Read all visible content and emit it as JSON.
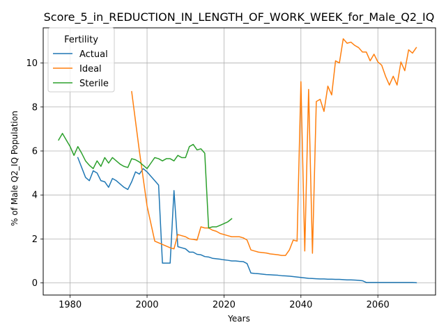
{
  "chart_data": {
    "type": "line",
    "title": "Score_5_in_REDUCTION_IN_LENGTH_OF_WORK_WEEK_for_Male_Q2_IQ",
    "xlabel": "Years",
    "ylabel": "% of Male Q2_IQ Population",
    "xlim": [
      1973,
      2075
    ],
    "ylim": [
      -0.55,
      11.6
    ],
    "xticks": [
      1980,
      2000,
      2020,
      2040,
      2060
    ],
    "yticks": [
      0,
      2,
      4,
      6,
      8,
      10
    ],
    "grid": true,
    "legend": {
      "title": "Fertility",
      "placement": "top-left"
    },
    "series": [
      {
        "name": "Actual",
        "color": "#1f77b4",
        "x": [
          1982,
          1983,
          1984,
          1985,
          1986,
          1987,
          1988,
          1989,
          1990,
          1991,
          1992,
          1993,
          1994,
          1995,
          1996,
          1997,
          1998,
          1999,
          2000,
          2001,
          2002,
          2003,
          2004,
          2005,
          2006,
          2007,
          2008,
          2009,
          2010,
          2011,
          2012,
          2013,
          2014,
          2015,
          2016,
          2017,
          2018,
          2019,
          2020,
          2021,
          2022,
          2023,
          2024,
          2025,
          2026,
          2027,
          2028,
          2029,
          2030,
          2031,
          2032,
          2033,
          2034,
          2035,
          2036,
          2037,
          2038,
          2039,
          2040,
          2041,
          2042,
          2043,
          2044,
          2045,
          2046,
          2047,
          2048,
          2049,
          2050,
          2051,
          2052,
          2053,
          2054,
          2055,
          2056,
          2057,
          2058,
          2059,
          2060,
          2061,
          2062,
          2063,
          2064,
          2065,
          2066,
          2067,
          2068,
          2069,
          2070
        ],
        "y": [
          5.7,
          5.25,
          4.8,
          4.65,
          5.1,
          5.0,
          4.65,
          4.6,
          4.35,
          4.75,
          4.65,
          4.5,
          4.35,
          4.25,
          4.6,
          5.05,
          4.95,
          5.2,
          5.05,
          4.85,
          4.65,
          4.45,
          0.9,
          0.9,
          0.9,
          4.2,
          1.65,
          1.6,
          1.55,
          1.4,
          1.4,
          1.3,
          1.28,
          1.2,
          1.18,
          1.12,
          1.1,
          1.08,
          1.05,
          1.03,
          1.0,
          1.0,
          0.98,
          0.97,
          0.88,
          0.45,
          0.43,
          0.42,
          0.4,
          0.38,
          0.37,
          0.36,
          0.35,
          0.33,
          0.32,
          0.31,
          0.29,
          0.27,
          0.25,
          0.23,
          0.21,
          0.2,
          0.19,
          0.18,
          0.18,
          0.17,
          0.17,
          0.16,
          0.16,
          0.15,
          0.14,
          0.14,
          0.13,
          0.12,
          0.1,
          0.02,
          0.02,
          0.02,
          0.02,
          0.02,
          0.02,
          0.02,
          0.02,
          0.02,
          0.02,
          0.02,
          0.02,
          0.02,
          0.01
        ]
      },
      {
        "name": "Ideal",
        "color": "#ff7f0e",
        "x": [
          1996,
          1998,
          2000,
          2002,
          2004,
          2006,
          2007,
          2008,
          2009,
          2010,
          2011,
          2012,
          2013,
          2014,
          2015,
          2016,
          2017,
          2018,
          2019,
          2020,
          2021,
          2022,
          2023,
          2024,
          2025,
          2026,
          2027,
          2028,
          2029,
          2030,
          2031,
          2032,
          2033,
          2034,
          2035,
          2036,
          2037,
          2038,
          2039,
          2040,
          2041,
          2042,
          2043,
          2044,
          2045,
          2046,
          2047,
          2048,
          2049,
          2050,
          2051,
          2052,
          2053,
          2054,
          2055,
          2056,
          2057,
          2058,
          2059,
          2060,
          2061,
          2062,
          2063,
          2064,
          2065,
          2066,
          2067,
          2068,
          2069,
          2070
        ],
        "y": [
          8.7,
          6.0,
          3.5,
          1.9,
          1.75,
          1.6,
          1.55,
          2.2,
          2.15,
          2.1,
          2.0,
          1.98,
          1.95,
          2.55,
          2.5,
          2.5,
          2.4,
          2.35,
          2.25,
          2.2,
          2.15,
          2.1,
          2.1,
          2.1,
          2.05,
          1.95,
          1.5,
          1.45,
          1.4,
          1.38,
          1.36,
          1.32,
          1.3,
          1.28,
          1.25,
          1.25,
          1.5,
          1.95,
          1.9,
          9.15,
          1.45,
          8.8,
          1.35,
          8.25,
          8.35,
          7.8,
          8.95,
          8.55,
          10.1,
          10.0,
          11.1,
          10.9,
          10.95,
          10.8,
          10.7,
          10.5,
          10.5,
          10.1,
          10.4,
          10.05,
          9.9,
          9.4,
          9.0,
          9.4,
          9.0,
          10.05,
          9.65,
          10.6,
          10.45,
          10.7
        ]
      },
      {
        "name": "Sterile",
        "color": "#2ca02c",
        "x": [
          1977,
          1978,
          1979,
          1980,
          1981,
          1982,
          1983,
          1984,
          1985,
          1986,
          1987,
          1988,
          1989,
          1990,
          1991,
          1992,
          1993,
          1994,
          1995,
          1996,
          1997,
          1998,
          1999,
          2000,
          2001,
          2002,
          2003,
          2004,
          2005,
          2006,
          2007,
          2008,
          2009,
          2010,
          2011,
          2012,
          2013,
          2014,
          2015,
          2016,
          2017,
          2018,
          2019,
          2020,
          2021,
          2022
        ],
        "y": [
          6.5,
          6.8,
          6.5,
          6.2,
          5.8,
          6.2,
          5.9,
          5.55,
          5.35,
          5.2,
          5.55,
          5.3,
          5.7,
          5.45,
          5.7,
          5.55,
          5.4,
          5.3,
          5.25,
          5.65,
          5.6,
          5.5,
          5.35,
          5.2,
          5.45,
          5.7,
          5.65,
          5.55,
          5.65,
          5.65,
          5.55,
          5.8,
          5.7,
          5.7,
          6.2,
          6.3,
          6.05,
          6.1,
          5.9,
          2.5,
          2.55,
          2.55,
          2.62,
          2.7,
          2.78,
          2.92
        ]
      }
    ]
  }
}
